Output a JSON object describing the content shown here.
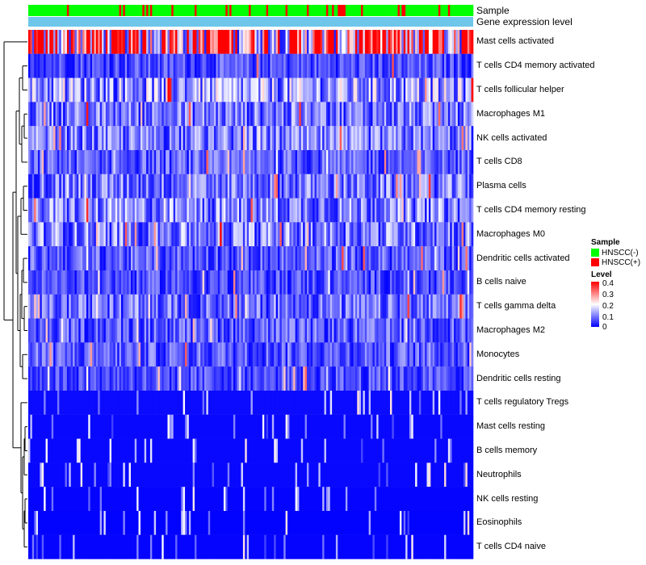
{
  "chart_data": {
    "type": "heatmap",
    "title": "",
    "annotation_tracks": [
      {
        "name": "Sample",
        "colors": {
          "HNSCC(-)": "#00ff00",
          "HNSCC(+)": "#ff0000"
        }
      },
      {
        "name": "Gene expression level",
        "color": "#6ec6ea"
      }
    ],
    "rows": [
      {
        "label": "Mast cells activated",
        "mean": 0.28
      },
      {
        "label": "T cells CD4 memory activated",
        "mean": 0.06
      },
      {
        "label": "T cells follicular helper",
        "mean": 0.12
      },
      {
        "label": "Macrophages M1",
        "mean": 0.09
      },
      {
        "label": "NK cells activated",
        "mean": 0.09
      },
      {
        "label": "T cells CD8",
        "mean": 0.07
      },
      {
        "label": "Plasma cells",
        "mean": 0.09
      },
      {
        "label": "T cells CD4 memory resting",
        "mean": 0.1
      },
      {
        "label": "Macrophages M0",
        "mean": 0.1
      },
      {
        "label": "Dendritic cells activated",
        "mean": 0.07
      },
      {
        "label": "B cells naive",
        "mean": 0.06
      },
      {
        "label": "T cells gamma delta",
        "mean": 0.08
      },
      {
        "label": "Macrophages M2",
        "mean": 0.07
      },
      {
        "label": "Monocytes",
        "mean": 0.07
      },
      {
        "label": "Dendritic cells resting",
        "mean": 0.06
      },
      {
        "label": "T cells regulatory  Tregs",
        "mean": 0.03
      },
      {
        "label": "Mast cells resting",
        "mean": 0.02
      },
      {
        "label": "B cells memory",
        "mean": 0.02
      },
      {
        "label": "Neutrophils",
        "mean": 0.02
      },
      {
        "label": "NK cells resting",
        "mean": 0.01
      },
      {
        "label": "Eosinophils",
        "mean": 0.005
      },
      {
        "label": "T cells CD4 naive",
        "mean": 0.01
      }
    ],
    "color_scale": {
      "min": 0,
      "max": 0.4,
      "low": "#0000ff",
      "mid": "#ffffff",
      "high": "#ff0000"
    },
    "n_columns": 230,
    "legend_position": "right"
  },
  "legend": {
    "sample_title": "Sample",
    "items": [
      {
        "label": "HNSCC(-)",
        "color": "#00ff00"
      },
      {
        "label": "HNSCC(+)",
        "color": "#ff0000"
      }
    ],
    "level_title": "Level",
    "ticks": [
      "0.4",
      "0.3",
      "0.2",
      "0.1",
      "0"
    ]
  }
}
